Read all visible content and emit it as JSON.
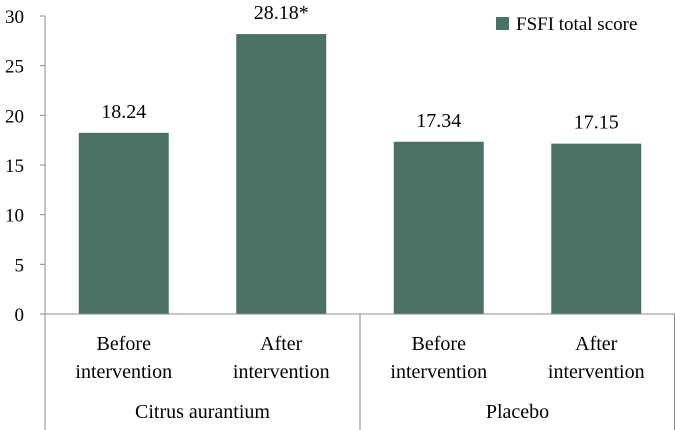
{
  "chart_data": {
    "type": "bar",
    "title": "",
    "xlabel": "",
    "ylabel": "",
    "ylim": [
      0,
      30
    ],
    "yticks": [
      0,
      5,
      10,
      15,
      20,
      25,
      30
    ],
    "grid": false,
    "legend_position": "top-right",
    "groups": [
      {
        "label": "Citrus aurantium",
        "categories": [
          "Before intervention",
          "After intervention"
        ]
      },
      {
        "label": "Placebo",
        "categories": [
          "Before intervention",
          "After intervention"
        ]
      }
    ],
    "series": [
      {
        "name": "FSFI total score",
        "color": "#4a7264",
        "values": [
          18.24,
          28.18,
          17.34,
          17.15
        ],
        "data_labels": [
          "18.24",
          "28.18*",
          "17.34",
          "17.15"
        ]
      }
    ]
  }
}
